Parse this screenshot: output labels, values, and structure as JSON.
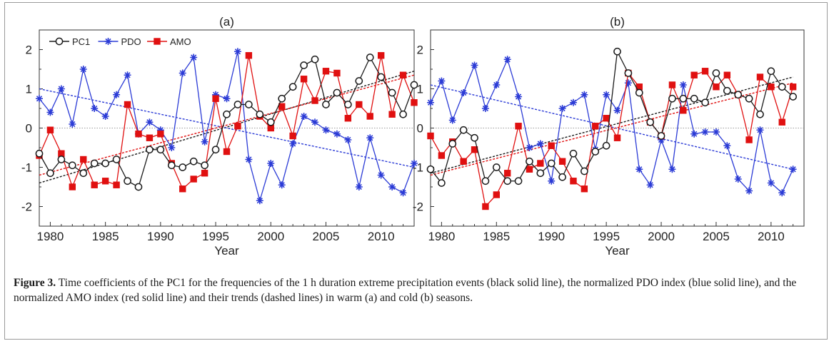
{
  "chart_data": [
    {
      "type": "line",
      "title": "(a)",
      "xlabel": "Year",
      "ylabel": "",
      "xlim": [
        1979,
        2013
      ],
      "ylim": [
        -2.5,
        2.5
      ],
      "xticks": [
        1980,
        1985,
        1990,
        1995,
        2000,
        2005,
        2010
      ],
      "yticks": [
        -2,
        -1,
        0,
        1,
        2
      ],
      "legend": {
        "placement": "top-left",
        "entries": [
          "PC1",
          "PDO",
          "AMO"
        ]
      },
      "zero_line": true,
      "x": [
        1979,
        1980,
        1981,
        1982,
        1983,
        1984,
        1985,
        1986,
        1987,
        1988,
        1989,
        1990,
        1991,
        1992,
        1993,
        1994,
        1995,
        1996,
        1997,
        1998,
        1999,
        2000,
        2001,
        2002,
        2003,
        2004,
        2005,
        2006,
        2007,
        2008,
        2009,
        2010,
        2011,
        2012,
        2013
      ],
      "series": [
        {
          "name": "PC1",
          "color": "#1a1a1a",
          "marker": "circle",
          "values": [
            -0.65,
            -1.15,
            -0.8,
            -0.95,
            -1.15,
            -0.9,
            -0.9,
            -0.8,
            -1.35,
            -1.5,
            -0.55,
            -0.55,
            -0.95,
            -1.0,
            -0.85,
            -0.95,
            -0.55,
            0.35,
            0.6,
            0.6,
            0.35,
            0.15,
            0.75,
            1.05,
            1.6,
            1.75,
            0.6,
            0.9,
            0.6,
            1.2,
            1.8,
            1.3,
            0.9,
            0.35,
            1.1
          ],
          "trend": [
            -1.4,
            1.45
          ]
        },
        {
          "name": "PDO",
          "color": "#2b3bd6",
          "marker": "asterisk",
          "values": [
            0.75,
            0.4,
            1.0,
            0.1,
            1.5,
            0.5,
            0.3,
            0.85,
            1.35,
            -0.15,
            0.15,
            -0.05,
            -0.5,
            1.4,
            1.8,
            -0.35,
            0.85,
            0.75,
            1.95,
            -0.8,
            -1.85,
            -0.9,
            -1.45,
            -0.4,
            0.3,
            0.15,
            -0.05,
            -0.15,
            -0.3,
            -1.5,
            -0.25,
            -1.2,
            -1.5,
            -1.65,
            -0.9
          ],
          "trend": [
            1.0,
            -1.0
          ]
        },
        {
          "name": "AMO",
          "color": "#e01010",
          "marker": "square",
          "values": [
            -0.7,
            -0.05,
            -0.65,
            -1.5,
            -0.8,
            -1.45,
            -1.35,
            -1.45,
            0.6,
            -0.15,
            -0.25,
            -0.15,
            -0.9,
            -1.55,
            -1.3,
            -1.15,
            0.75,
            -0.6,
            0.05,
            1.85,
            0.3,
            0.0,
            0.55,
            -0.2,
            1.25,
            0.7,
            1.45,
            1.4,
            0.25,
            0.6,
            0.3,
            1.85,
            0.35,
            1.35,
            0.65
          ],
          "trend": [
            -1.2,
            1.35
          ]
        }
      ]
    },
    {
      "type": "line",
      "title": "(b)",
      "xlabel": "Year",
      "ylabel": "",
      "xlim": [
        1979,
        2013
      ],
      "ylim": [
        -2.5,
        2.5
      ],
      "xticks": [
        1980,
        1985,
        1990,
        1995,
        2000,
        2005,
        2010
      ],
      "yticks": [
        -2,
        -1,
        0,
        1,
        2
      ],
      "zero_line": true,
      "x": [
        1979,
        1980,
        1981,
        1982,
        1983,
        1984,
        1985,
        1986,
        1987,
        1988,
        1989,
        1990,
        1991,
        1992,
        1993,
        1994,
        1995,
        1996,
        1997,
        1998,
        1999,
        2000,
        2001,
        2002,
        2003,
        2004,
        2005,
        2006,
        2007,
        2008,
        2009,
        2010,
        2011,
        2012
      ],
      "series": [
        {
          "name": "PC1",
          "color": "#1a1a1a",
          "marker": "circle",
          "values": [
            -1.05,
            -1.4,
            -0.4,
            -0.05,
            -0.25,
            -1.35,
            -1.0,
            -1.35,
            -1.35,
            -0.85,
            -1.15,
            -0.9,
            -1.25,
            -0.65,
            -1.1,
            -0.6,
            -0.45,
            1.95,
            1.4,
            0.9,
            0.15,
            -0.2,
            0.75,
            0.75,
            0.75,
            0.65,
            1.4,
            0.95,
            0.85,
            0.75,
            0.35,
            1.45,
            1.05,
            0.8
          ],
          "trend": [
            -1.15,
            1.3
          ]
        },
        {
          "name": "PDO",
          "color": "#2b3bd6",
          "marker": "asterisk",
          "values": [
            0.65,
            1.2,
            0.2,
            0.9,
            1.6,
            0.5,
            1.1,
            1.75,
            0.8,
            -0.5,
            -0.4,
            -1.35,
            0.5,
            0.65,
            0.85,
            -0.55,
            0.85,
            0.45,
            1.15,
            -1.05,
            -1.45,
            -0.3,
            -1.05,
            1.1,
            -0.15,
            -0.1,
            -0.1,
            -0.45,
            -1.3,
            -1.6,
            -0.05,
            -1.4,
            -1.65,
            -1.05
          ],
          "trend": [
            1.1,
            -1.05
          ]
        },
        {
          "name": "AMO",
          "color": "#e01010",
          "marker": "square",
          "values": [
            -0.2,
            -0.7,
            -0.35,
            -0.85,
            -0.55,
            -2.0,
            -1.7,
            -1.15,
            0.05,
            -1.05,
            -0.9,
            -0.45,
            -0.85,
            -1.35,
            -1.55,
            0.05,
            0.25,
            -0.25,
            1.4,
            1.05,
            0.15,
            -0.2,
            1.1,
            0.45,
            1.35,
            1.45,
            1.05,
            1.35,
            0.85,
            -0.3,
            1.3,
            1.05,
            0.15,
            1.05
          ],
          "trend": [
            -1.2,
            1.15
          ]
        }
      ]
    }
  ],
  "caption": {
    "label": "Figure 3.",
    "text": " Time coefficients of the PC1 for the frequencies of the 1 h duration extreme precipitation events (black solid line), the normalized PDO index (blue solid line), and the normalized AMO index (red solid line) and their trends (dashed lines) in warm (a) and cold (b) seasons."
  }
}
